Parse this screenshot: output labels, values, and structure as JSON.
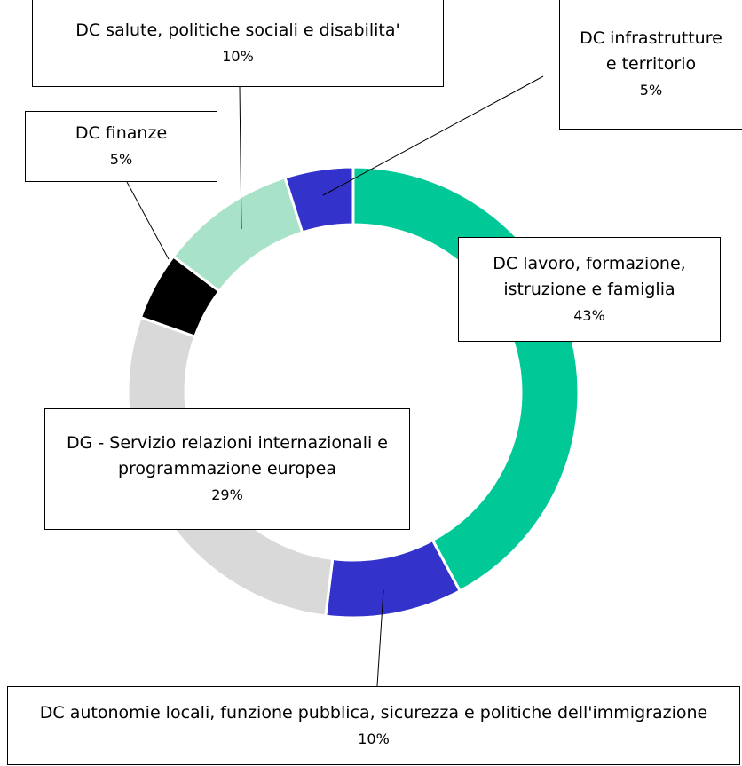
{
  "chart_data": {
    "type": "donut",
    "categories": [
      "DC lavoro, formazione, istruzione e famiglia",
      "DC autonomie locali, funzione pubblica, sicurezza e politiche dell'immigrazione",
      "DG - Servizio relazioni internazionali e programmazione europea",
      "DC finanze",
      "DC salute, politiche sociali e disabilita'",
      "DC infrastrutture e territorio"
    ],
    "values": [
      43,
      10,
      29,
      5,
      10,
      5
    ],
    "value_labels": [
      "43%",
      "10%",
      "29%",
      "5%",
      "10%",
      "5%"
    ],
    "colors": [
      "#00c896",
      "#3333cc",
      "#d9d9d9",
      "#000000",
      "#a8e2c8",
      "#3333cc"
    ]
  }
}
